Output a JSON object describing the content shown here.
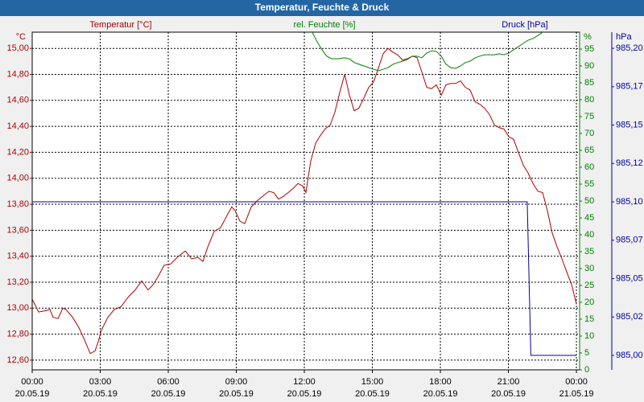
{
  "chart_data": {
    "type": "line",
    "title": "Temperatur, Feuchte & Druck",
    "grid": true,
    "xlim": [
      0,
      24.14
    ],
    "xticks": [
      {
        "value": 0,
        "label": "00:00"
      },
      {
        "value": 3,
        "label": "03:00"
      },
      {
        "value": 6,
        "label": "06:00"
      },
      {
        "value": 9,
        "label": "09:00"
      },
      {
        "value": 12,
        "label": "12:00"
      },
      {
        "value": 15,
        "label": "15:00"
      },
      {
        "value": 18,
        "label": "18:00"
      },
      {
        "value": 21,
        "label": "21:00"
      },
      {
        "value": 24,
        "label": "00:00"
      }
    ],
    "xtick_dates": [
      "20.05.19",
      "20.05.19",
      "20.05.19",
      "20.05.19",
      "20.05.19",
      "20.05.19",
      "20.05.19",
      "20.05.19",
      "21.05.19"
    ],
    "y_label": "°C",
    "ylim": [
      12.525,
      15.125
    ],
    "yticks": [
      {
        "value": 12.6,
        "label": "12,60"
      },
      {
        "value": 12.8,
        "label": "12,80"
      },
      {
        "value": 13.0,
        "label": "13,00"
      },
      {
        "value": 13.2,
        "label": "13,20"
      },
      {
        "value": 13.4,
        "label": "13,40"
      },
      {
        "value": 13.6,
        "label": "13,60"
      },
      {
        "value": 13.8,
        "label": "13,80"
      },
      {
        "value": 14.0,
        "label": "14,00"
      },
      {
        "value": 14.2,
        "label": "14,20"
      },
      {
        "value": 14.4,
        "label": "14,40"
      },
      {
        "value": 14.6,
        "label": "14,60"
      },
      {
        "value": 14.8,
        "label": "14,80"
      },
      {
        "value": 15.0,
        "label": "15,00"
      }
    ],
    "y2_label": "%",
    "y2lim": [
      0,
      100
    ],
    "y2ticks": [
      0,
      5,
      10,
      15,
      20,
      25,
      30,
      35,
      40,
      45,
      50,
      55,
      60,
      65,
      70,
      75,
      80,
      85,
      90,
      95
    ],
    "y3_label": "hPa",
    "y3lim": [
      984.9906,
      985.2105
    ],
    "y3ticks": [
      {
        "value": 985.0,
        "label": "985,00"
      },
      {
        "value": 985.025,
        "label": "985,02"
      },
      {
        "value": 985.05,
        "label": "985,05"
      },
      {
        "value": 985.075,
        "label": "985,07"
      },
      {
        "value": 985.1,
        "label": "985,10"
      },
      {
        "value": 985.125,
        "label": "985,12"
      },
      {
        "value": 985.15,
        "label": "985,15"
      },
      {
        "value": 985.175,
        "label": "985,17"
      },
      {
        "value": 985.2,
        "label": "985,20"
      }
    ],
    "series": [
      {
        "name": "Temperatur [°C]",
        "color": "#b00000",
        "axis": "y",
        "x": [
          0.0,
          0.28,
          0.57,
          0.78,
          0.92,
          1.14,
          1.35,
          1.49,
          1.78,
          2.06,
          2.27,
          2.56,
          2.77,
          2.91,
          3.05,
          3.34,
          3.62,
          3.91,
          4.26,
          4.54,
          4.83,
          5.11,
          5.33,
          5.54,
          5.82,
          6.11,
          6.39,
          6.75,
          7.03,
          7.31,
          7.53,
          7.74,
          8.02,
          8.31,
          8.52,
          8.8,
          8.95,
          9.16,
          9.37,
          9.66,
          9.94,
          10.22,
          10.44,
          10.65,
          10.86,
          11.08,
          11.29,
          11.5,
          11.72,
          11.93,
          12.07,
          12.28,
          12.5,
          12.71,
          12.92,
          13.14,
          13.35,
          13.56,
          13.78,
          13.99,
          14.2,
          14.41,
          14.63,
          14.84,
          15.05,
          15.27,
          15.48,
          15.69,
          15.91,
          16.12,
          16.33,
          16.54,
          16.76,
          16.97,
          17.18,
          17.4,
          17.61,
          17.82,
          18.04,
          18.25,
          18.46,
          18.67,
          18.89,
          19.1,
          19.31,
          19.53,
          19.74,
          19.95,
          20.17,
          20.38,
          20.59,
          20.8,
          21.02,
          21.23,
          21.44,
          21.66,
          21.87,
          22.08,
          22.3,
          22.51,
          22.72,
          22.93,
          23.15,
          23.36,
          23.57,
          23.79,
          24.0
        ],
        "values": [
          13.07,
          12.97,
          12.98,
          12.99,
          12.93,
          12.92,
          13.0,
          12.99,
          12.93,
          12.85,
          12.77,
          12.65,
          12.67,
          12.74,
          12.83,
          12.93,
          12.99,
          13.01,
          13.09,
          13.14,
          13.21,
          13.14,
          13.18,
          13.24,
          13.33,
          13.34,
          13.39,
          13.44,
          13.38,
          13.39,
          13.36,
          13.47,
          13.59,
          13.62,
          13.69,
          13.78,
          13.75,
          13.67,
          13.65,
          13.78,
          13.83,
          13.87,
          13.9,
          13.89,
          13.84,
          13.86,
          13.89,
          13.92,
          13.96,
          13.94,
          13.89,
          14.13,
          14.27,
          14.33,
          14.38,
          14.41,
          14.51,
          14.66,
          14.8,
          14.64,
          14.52,
          14.54,
          14.62,
          14.7,
          14.74,
          14.85,
          14.96,
          15.0,
          14.97,
          14.95,
          14.91,
          14.92,
          14.94,
          14.93,
          14.82,
          14.7,
          14.69,
          14.72,
          14.64,
          14.72,
          14.73,
          14.73,
          14.75,
          14.7,
          14.68,
          14.59,
          14.57,
          14.54,
          14.49,
          14.41,
          14.39,
          14.38,
          14.32,
          14.3,
          14.2,
          14.1,
          14.04,
          13.96,
          13.9,
          13.89,
          13.75,
          13.58,
          13.47,
          13.38,
          13.28,
          13.18,
          13.03
        ]
      },
      {
        "name": "rel. Feuchte [%]",
        "color": "#008000",
        "axis": "y2",
        "x": [
          12.35,
          12.57,
          12.78,
          12.99,
          13.21,
          13.49,
          13.77,
          13.99,
          14.2,
          14.41,
          14.63,
          14.84,
          15.05,
          15.27,
          15.48,
          15.69,
          15.91,
          16.12,
          16.33,
          16.54,
          16.76,
          16.97,
          17.18,
          17.4,
          17.61,
          17.82,
          18.04,
          18.25,
          18.46,
          18.67,
          18.89,
          19.1,
          19.31,
          19.53,
          19.74,
          19.95,
          20.17,
          20.38,
          20.59,
          20.8,
          21.02,
          21.23,
          21.44,
          21.66,
          21.87,
          22.08,
          22.3,
          22.51,
          22.65
        ],
        "values": [
          100,
          97.1,
          94.8,
          92.9,
          92.1,
          92.1,
          92.4,
          92.1,
          91.0,
          90.5,
          90.0,
          89.5,
          89.0,
          88.6,
          89.0,
          89.5,
          90.5,
          91.0,
          91.4,
          91.9,
          92.9,
          92.9,
          92.4,
          93.8,
          94.5,
          94.3,
          92.9,
          90.5,
          89.5,
          89.3,
          90.0,
          91.0,
          91.4,
          92.4,
          92.9,
          93.3,
          93.3,
          93.3,
          93.6,
          93.3,
          93.8,
          94.8,
          95.7,
          96.7,
          97.6,
          98.1,
          99.0,
          100,
          100.5
        ]
      },
      {
        "name": "Druck [hPa]",
        "color": "#0000a0",
        "axis": "y3",
        "x": [
          0,
          21.83,
          21.99,
          24.0
        ],
        "values": [
          985.1,
          985.1,
          985.0,
          985.0
        ]
      }
    ]
  }
}
